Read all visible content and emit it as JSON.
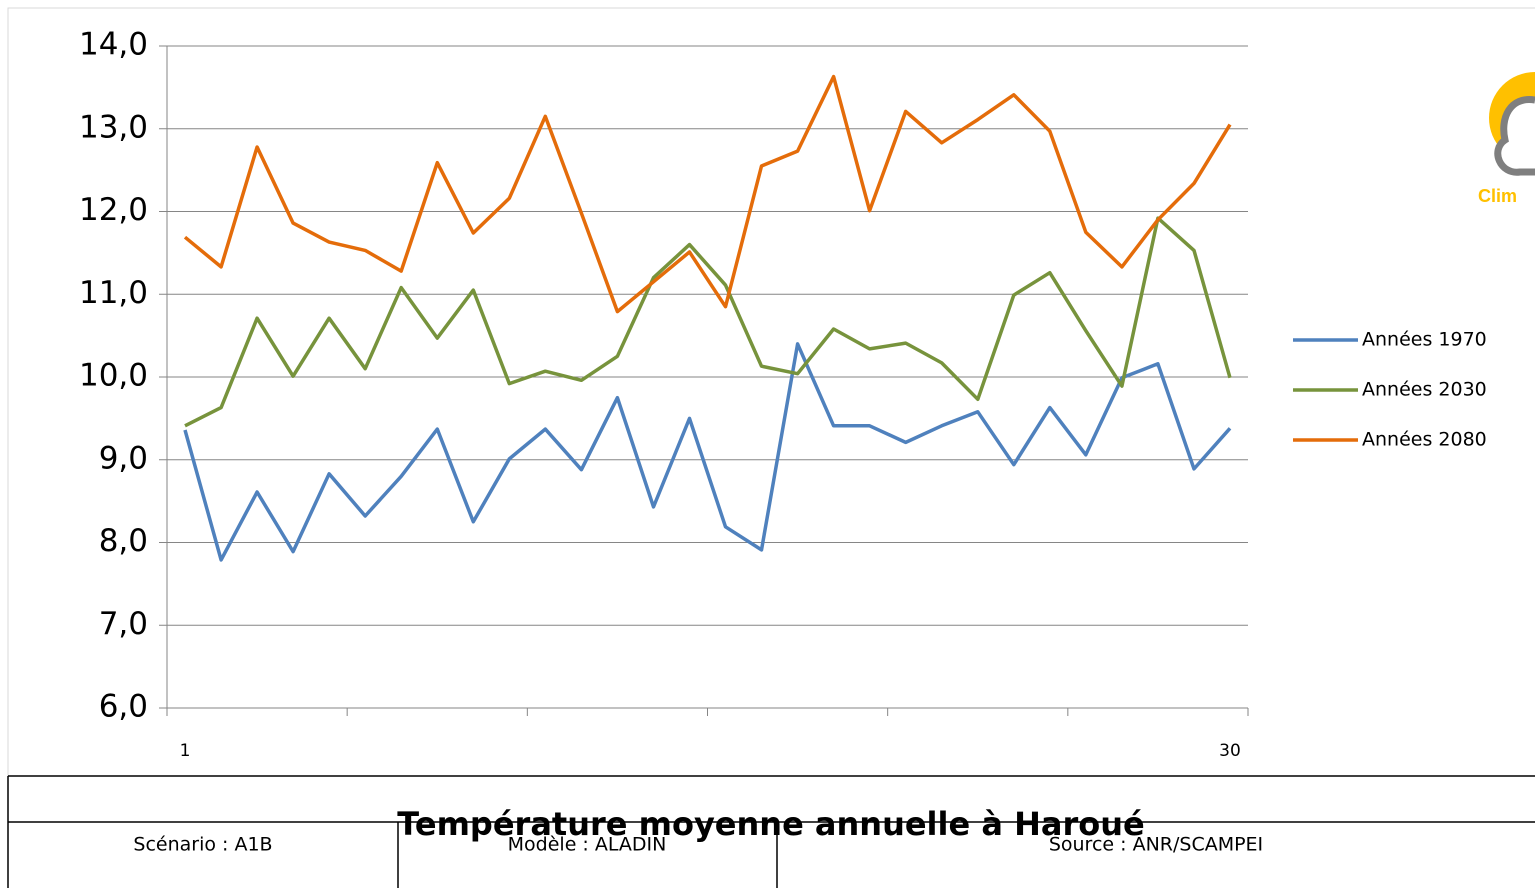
{
  "chart_data": {
    "type": "line",
    "categories": [
      "1",
      null,
      null,
      null,
      null,
      null,
      null,
      null,
      null,
      null,
      null,
      null,
      null,
      null,
      null,
      null,
      null,
      null,
      null,
      null,
      null,
      null,
      null,
      null,
      null,
      null,
      null,
      null,
      null,
      "30"
    ],
    "series": [
      {
        "name": "Années 1970",
        "color": "#4f81bd",
        "values": [
          9.36,
          7.79,
          8.61,
          7.89,
          8.83,
          8.32,
          8.8,
          9.37,
          8.25,
          9.01,
          9.37,
          8.88,
          9.75,
          8.43,
          9.5,
          8.19,
          7.91,
          10.4,
          9.41,
          9.41,
          9.21,
          9.41,
          9.58,
          8.94,
          9.63,
          9.06,
          9.99,
          10.16,
          8.89,
          9.38
        ]
      },
      {
        "name": "Années 2030",
        "color": "#77933c",
        "values": [
          9.41,
          9.63,
          10.71,
          10.01,
          10.71,
          10.1,
          11.08,
          10.47,
          11.05,
          9.92,
          10.07,
          9.96,
          10.25,
          11.2,
          11.6,
          11.11,
          10.13,
          10.04,
          10.58,
          10.34,
          10.41,
          10.17,
          9.73,
          10.99,
          11.26,
          10.56,
          9.89,
          11.92,
          11.53,
          9.99
        ]
      },
      {
        "name": "Années 2080",
        "color": "#e46c0a",
        "values": [
          11.69,
          11.33,
          12.78,
          11.86,
          11.63,
          11.53,
          11.28,
          12.59,
          11.74,
          12.16,
          13.15,
          11.98,
          10.79,
          11.15,
          11.51,
          10.85,
          12.55,
          12.73,
          13.63,
          12.01,
          13.21,
          12.83,
          13.11,
          13.41,
          12.97,
          11.75,
          11.33,
          11.9,
          12.34,
          13.05
        ]
      }
    ],
    "ylim": [
      6,
      14
    ],
    "yticks": [
      {
        "value": 6,
        "label": "6,0"
      },
      {
        "value": 7,
        "label": "7,0"
      },
      {
        "value": 8,
        "label": "8,0"
      },
      {
        "value": 9,
        "label": "9,0"
      },
      {
        "value": 10,
        "label": "10,0"
      },
      {
        "value": 11,
        "label": "11,0"
      },
      {
        "value": 12,
        "label": "12,0"
      },
      {
        "value": 13,
        "label": "13,0"
      },
      {
        "value": 14,
        "label": "14,0"
      }
    ],
    "grid": true,
    "legend": "right"
  },
  "logo": {
    "text": "Clim"
  },
  "footer": {
    "title": "Température moyenne annuelle à Haroué",
    "cells": [
      "Scénario : A1B",
      "Modèle : ALADIN",
      "Source : ANR/SCAMPEI"
    ]
  }
}
